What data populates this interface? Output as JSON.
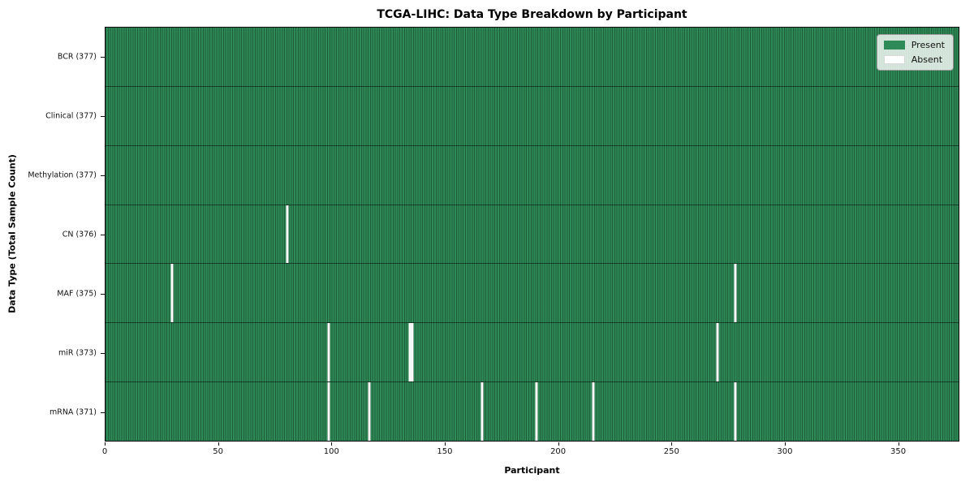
{
  "title": "TCGA-LIHC: Data Type Breakdown by Participant",
  "chart_data": {
    "type": "heatmap",
    "title": "TCGA-LIHC: Data Type Breakdown by Participant",
    "xlabel": "Participant",
    "ylabel": "Data Type (Total Sample Count)",
    "x_range": [
      0,
      377
    ],
    "x_ticks": [
      0,
      50,
      100,
      150,
      200,
      250,
      300,
      350
    ],
    "grid": false,
    "colors": {
      "present": "#2e8b57",
      "absent": "#ffffff",
      "cell_edge": "rgba(0,0,0,0.33)",
      "row_divider": "rgba(0,0,0,0.5)"
    },
    "legend": {
      "position": "upper-right",
      "entries": [
        {
          "label": "Present",
          "color": "#2e8b57"
        },
        {
          "label": "Absent",
          "color": "#ffffff"
        }
      ]
    },
    "rows": [
      {
        "name": "BCR",
        "label": "BCR (377)",
        "total": 377,
        "absent_participants": []
      },
      {
        "name": "Clinical",
        "label": "Clinical (377)",
        "total": 377,
        "absent_participants": []
      },
      {
        "name": "Methylation",
        "label": "Methylation (377)",
        "total": 377,
        "absent_participants": []
      },
      {
        "name": "CN",
        "label": "CN (376)",
        "total": 376,
        "absent_participants": [
          80
        ]
      },
      {
        "name": "MAF",
        "label": "MAF (375)",
        "total": 375,
        "absent_participants": [
          29,
          278
        ]
      },
      {
        "name": "miR",
        "label": "miR (373)",
        "total": 373,
        "absent_participants": [
          98,
          134,
          135,
          270
        ]
      },
      {
        "name": "mRNA",
        "label": "mRNA (371)",
        "total": 371,
        "absent_participants": [
          98,
          116,
          166,
          190,
          215,
          278
        ]
      }
    ]
  }
}
